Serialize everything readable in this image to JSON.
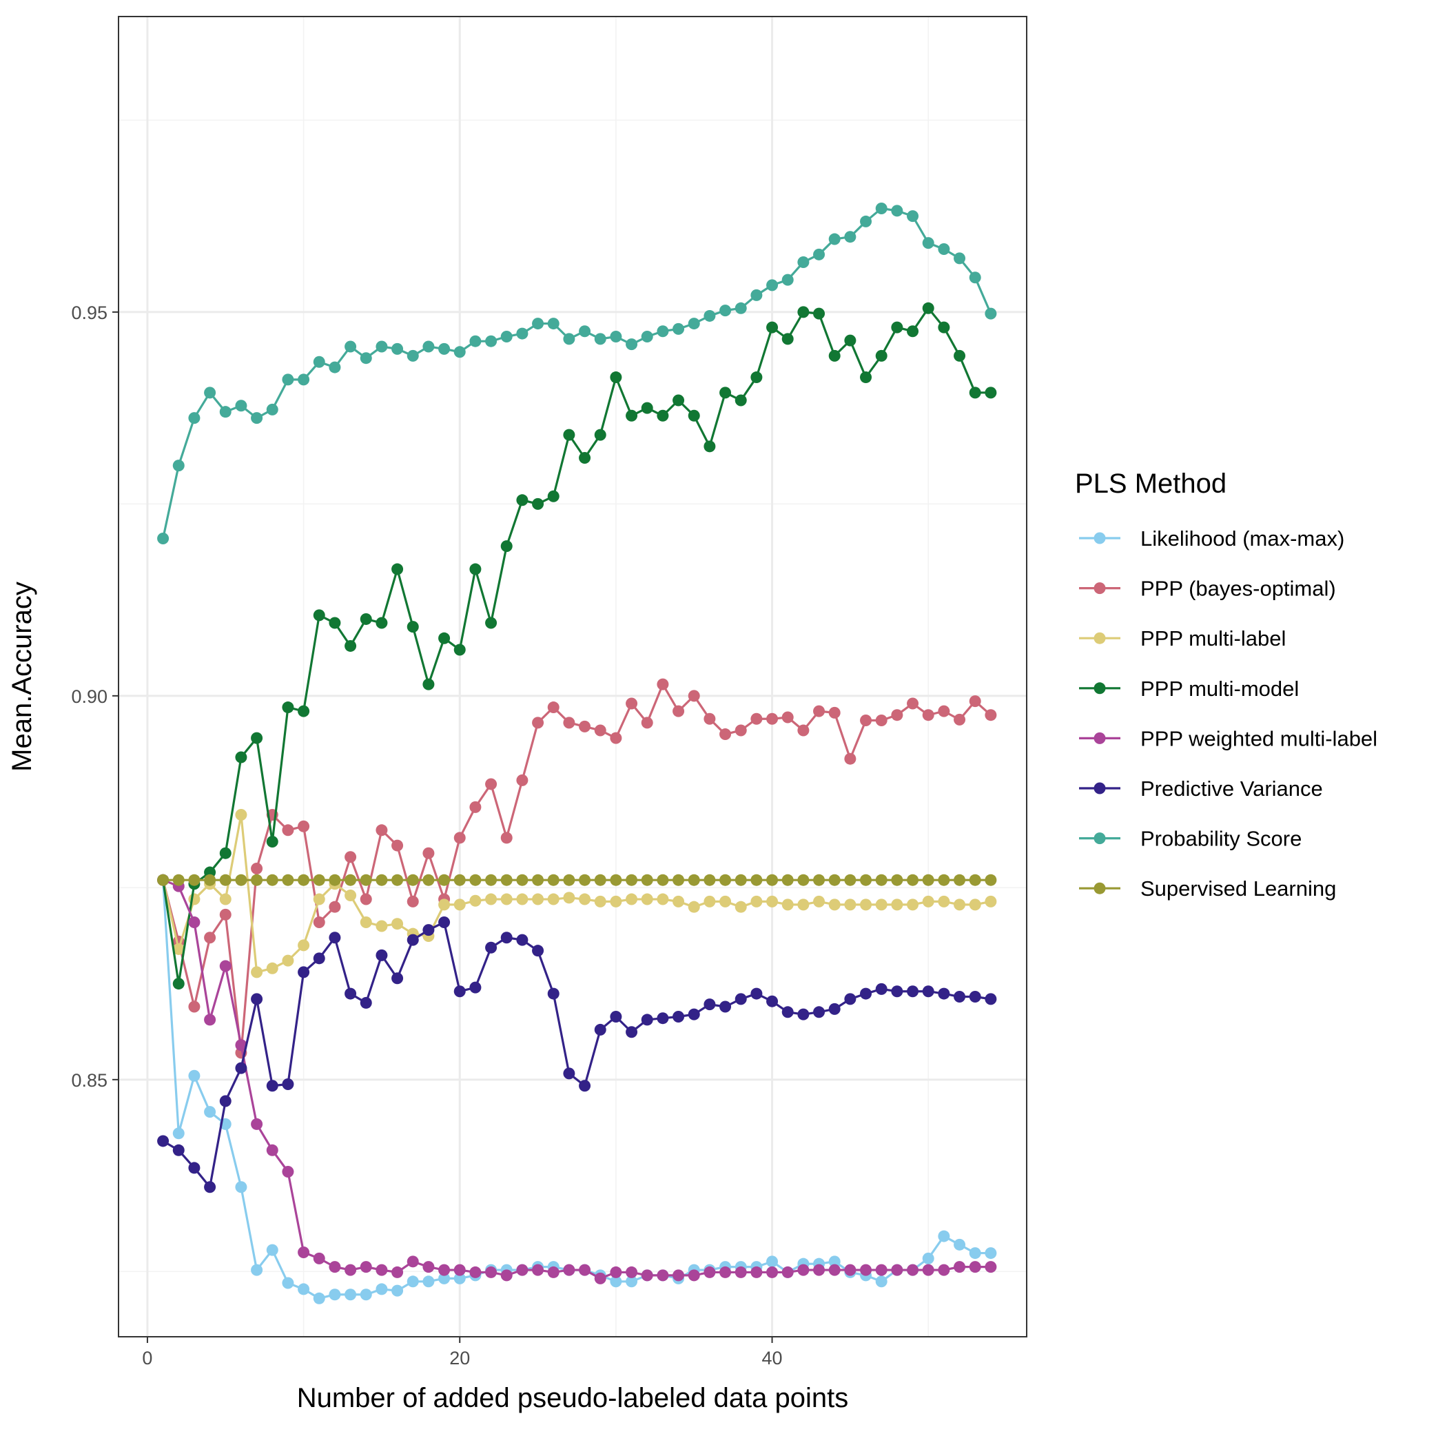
{
  "chart_data": {
    "type": "line",
    "title": "",
    "xlabel": "Number of added pseudo-labeled data points",
    "ylabel": "Mean.Accuracy",
    "xlim": [
      -1.85,
      56.3
    ],
    "ylim": [
      0.8165,
      0.9885
    ],
    "x_ticks": [
      0,
      20,
      40
    ],
    "y_ticks": [
      0.85,
      0.9,
      0.95
    ],
    "y_tick_labels": [
      "0.85",
      "0.90",
      "0.95"
    ],
    "grid": true,
    "legend_title": "PLS Method",
    "legend_position": "right",
    "x": [
      1,
      2,
      3,
      4,
      5,
      6,
      7,
      8,
      9,
      10,
      11,
      12,
      13,
      14,
      15,
      16,
      17,
      18,
      19,
      20,
      21,
      22,
      23,
      24,
      25,
      26,
      27,
      28,
      29,
      30,
      31,
      32,
      33,
      34,
      35,
      36,
      37,
      38,
      39,
      40,
      41,
      42,
      43,
      44,
      45,
      46,
      47,
      48,
      49,
      50,
      51,
      52,
      53,
      54
    ],
    "series": [
      {
        "name": "Likelihood (max-max)",
        "color": "#88CCEE",
        "values": [
          0.876,
          0.843,
          0.8505,
          0.8458,
          0.8442,
          0.836,
          0.8252,
          0.8278,
          0.8235,
          0.8227,
          0.8215,
          0.822,
          0.822,
          0.822,
          0.8227,
          0.8225,
          0.8237,
          0.8237,
          0.8241,
          0.8241,
          0.8245,
          0.8252,
          0.8252,
          0.8252,
          0.8256,
          0.8256,
          0.8252,
          0.8252,
          0.8245,
          0.8237,
          0.8237,
          0.8245,
          0.8245,
          0.8241,
          0.8252,
          0.8252,
          0.8256,
          0.8256,
          0.8256,
          0.8263,
          0.8249,
          0.826,
          0.826,
          0.8263,
          0.8249,
          0.8245,
          0.8237,
          0.8252,
          0.8252,
          0.8267,
          0.8296,
          0.8285,
          0.8274,
          0.8274
        ]
      },
      {
        "name": "PPP (bayes-optimal)",
        "color": "#CC6677",
        "values": [
          0.876,
          0.868,
          0.8595,
          0.8685,
          0.8715,
          0.8535,
          0.8775,
          0.8845,
          0.8825,
          0.883,
          0.8705,
          0.8725,
          0.879,
          0.8735,
          0.8825,
          0.8805,
          0.8732,
          0.8795,
          0.8735,
          0.8815,
          0.8855,
          0.8885,
          0.8815,
          0.889,
          0.8965,
          0.8985,
          0.8965,
          0.896,
          0.8955,
          0.8945,
          0.899,
          0.8965,
          0.9015,
          0.898,
          0.9,
          0.897,
          0.895,
          0.8955,
          0.897,
          0.897,
          0.8972,
          0.8955,
          0.898,
          0.8978,
          0.8918,
          0.8968,
          0.8968,
          0.8975,
          0.899,
          0.8975,
          0.898,
          0.8969,
          0.8993,
          0.8975
        ]
      },
      {
        "name": "PPP multi-label",
        "color": "#DDCC77",
        "values": [
          0.876,
          0.867,
          0.8735,
          0.8755,
          0.8735,
          0.8845,
          0.864,
          0.8645,
          0.8655,
          0.8675,
          0.8735,
          0.8755,
          0.874,
          0.8705,
          0.87,
          0.8703,
          0.869,
          0.8687,
          0.8728,
          0.8728,
          0.8733,
          0.8735,
          0.8735,
          0.8735,
          0.8735,
          0.8735,
          0.8737,
          0.8735,
          0.8732,
          0.8732,
          0.8735,
          0.8735,
          0.8735,
          0.8732,
          0.8725,
          0.8732,
          0.8732,
          0.8725,
          0.8732,
          0.8732,
          0.8728,
          0.8728,
          0.8732,
          0.8728,
          0.8728,
          0.8728,
          0.8728,
          0.8728,
          0.8728,
          0.8732,
          0.8732,
          0.8728,
          0.8728,
          0.8732
        ]
      },
      {
        "name": "PPP multi-model",
        "color": "#117733",
        "values": [
          0.876,
          0.8625,
          0.8755,
          0.877,
          0.8795,
          0.892,
          0.8945,
          0.881,
          0.8985,
          0.898,
          0.9105,
          0.9095,
          0.9065,
          0.91,
          0.9095,
          0.9165,
          0.909,
          0.9015,
          0.9075,
          0.906,
          0.9165,
          0.9095,
          0.9195,
          0.9255,
          0.925,
          0.926,
          0.934,
          0.931,
          0.934,
          0.9415,
          0.9365,
          0.9375,
          0.9365,
          0.9385,
          0.9365,
          0.9325,
          0.9395,
          0.9385,
          0.9415,
          0.948,
          0.9465,
          0.95,
          0.9498,
          0.9443,
          0.9463,
          0.9415,
          0.9443,
          0.948,
          0.9475,
          0.9505,
          0.948,
          0.9443,
          0.9395,
          0.9395
        ]
      },
      {
        "name": "PPP weighted multi-label",
        "color": "#AA4499",
        "values": [
          0.876,
          0.8752,
          0.8705,
          0.8578,
          0.8648,
          0.8545,
          0.8442,
          0.8408,
          0.838,
          0.8275,
          0.8267,
          0.8256,
          0.8252,
          0.8256,
          0.8252,
          0.8249,
          0.8263,
          0.8256,
          0.8252,
          0.8252,
          0.8249,
          0.8249,
          0.8245,
          0.8252,
          0.8252,
          0.8249,
          0.8252,
          0.8252,
          0.8241,
          0.8249,
          0.8249,
          0.8245,
          0.8245,
          0.8245,
          0.8245,
          0.8249,
          0.8249,
          0.8249,
          0.8249,
          0.8249,
          0.8249,
          0.8252,
          0.8252,
          0.8252,
          0.8252,
          0.8252,
          0.8252,
          0.8252,
          0.8252,
          0.8252,
          0.8252,
          0.8256,
          0.8256,
          0.8256
        ]
      },
      {
        "name": "Predictive Variance",
        "color": "#332288",
        "values": [
          0.842,
          0.8408,
          0.8385,
          0.836,
          0.8472,
          0.8515,
          0.8605,
          0.8492,
          0.8494,
          0.864,
          0.8658,
          0.8685,
          0.8612,
          0.86,
          0.8662,
          0.8632,
          0.8682,
          0.8695,
          0.8705,
          0.8615,
          0.862,
          0.8672,
          0.8685,
          0.8682,
          0.8668,
          0.8612,
          0.8508,
          0.8492,
          0.8565,
          0.8582,
          0.8562,
          0.8578,
          0.858,
          0.8582,
          0.8585,
          0.8598,
          0.8595,
          0.8605,
          0.8612,
          0.8602,
          0.8588,
          0.8585,
          0.8588,
          0.8592,
          0.8605,
          0.8612,
          0.8618,
          0.8615,
          0.8615,
          0.8615,
          0.8612,
          0.8608,
          0.8608,
          0.8605
        ]
      },
      {
        "name": "Probability Score",
        "color": "#44AA99",
        "values": [
          0.9205,
          0.93,
          0.9362,
          0.9395,
          0.937,
          0.9378,
          0.9362,
          0.9373,
          0.9412,
          0.9412,
          0.9435,
          0.9428,
          0.9455,
          0.944,
          0.9455,
          0.9452,
          0.9443,
          0.9455,
          0.9452,
          0.9448,
          0.9462,
          0.9462,
          0.9468,
          0.9472,
          0.9485,
          0.9485,
          0.9465,
          0.9475,
          0.9465,
          0.9468,
          0.9458,
          0.9468,
          0.9475,
          0.9478,
          0.9485,
          0.9495,
          0.9502,
          0.9505,
          0.9522,
          0.9535,
          0.9542,
          0.9565,
          0.9575,
          0.9595,
          0.9598,
          0.9618,
          0.9635,
          0.9632,
          0.9625,
          0.959,
          0.9582,
          0.957,
          0.9545,
          0.9498
        ]
      },
      {
        "name": "Supervised Learning",
        "color": "#999933",
        "values": [
          0.876,
          0.876,
          0.876,
          0.876,
          0.876,
          0.876,
          0.876,
          0.876,
          0.876,
          0.876,
          0.876,
          0.876,
          0.876,
          0.876,
          0.876,
          0.876,
          0.876,
          0.876,
          0.876,
          0.876,
          0.876,
          0.876,
          0.876,
          0.876,
          0.876,
          0.876,
          0.876,
          0.876,
          0.876,
          0.876,
          0.876,
          0.876,
          0.876,
          0.876,
          0.876,
          0.876,
          0.876,
          0.876,
          0.876,
          0.876,
          0.876,
          0.876,
          0.876,
          0.876,
          0.876,
          0.876,
          0.876,
          0.876,
          0.876,
          0.876,
          0.876,
          0.876,
          0.876,
          0.876
        ]
      }
    ]
  }
}
